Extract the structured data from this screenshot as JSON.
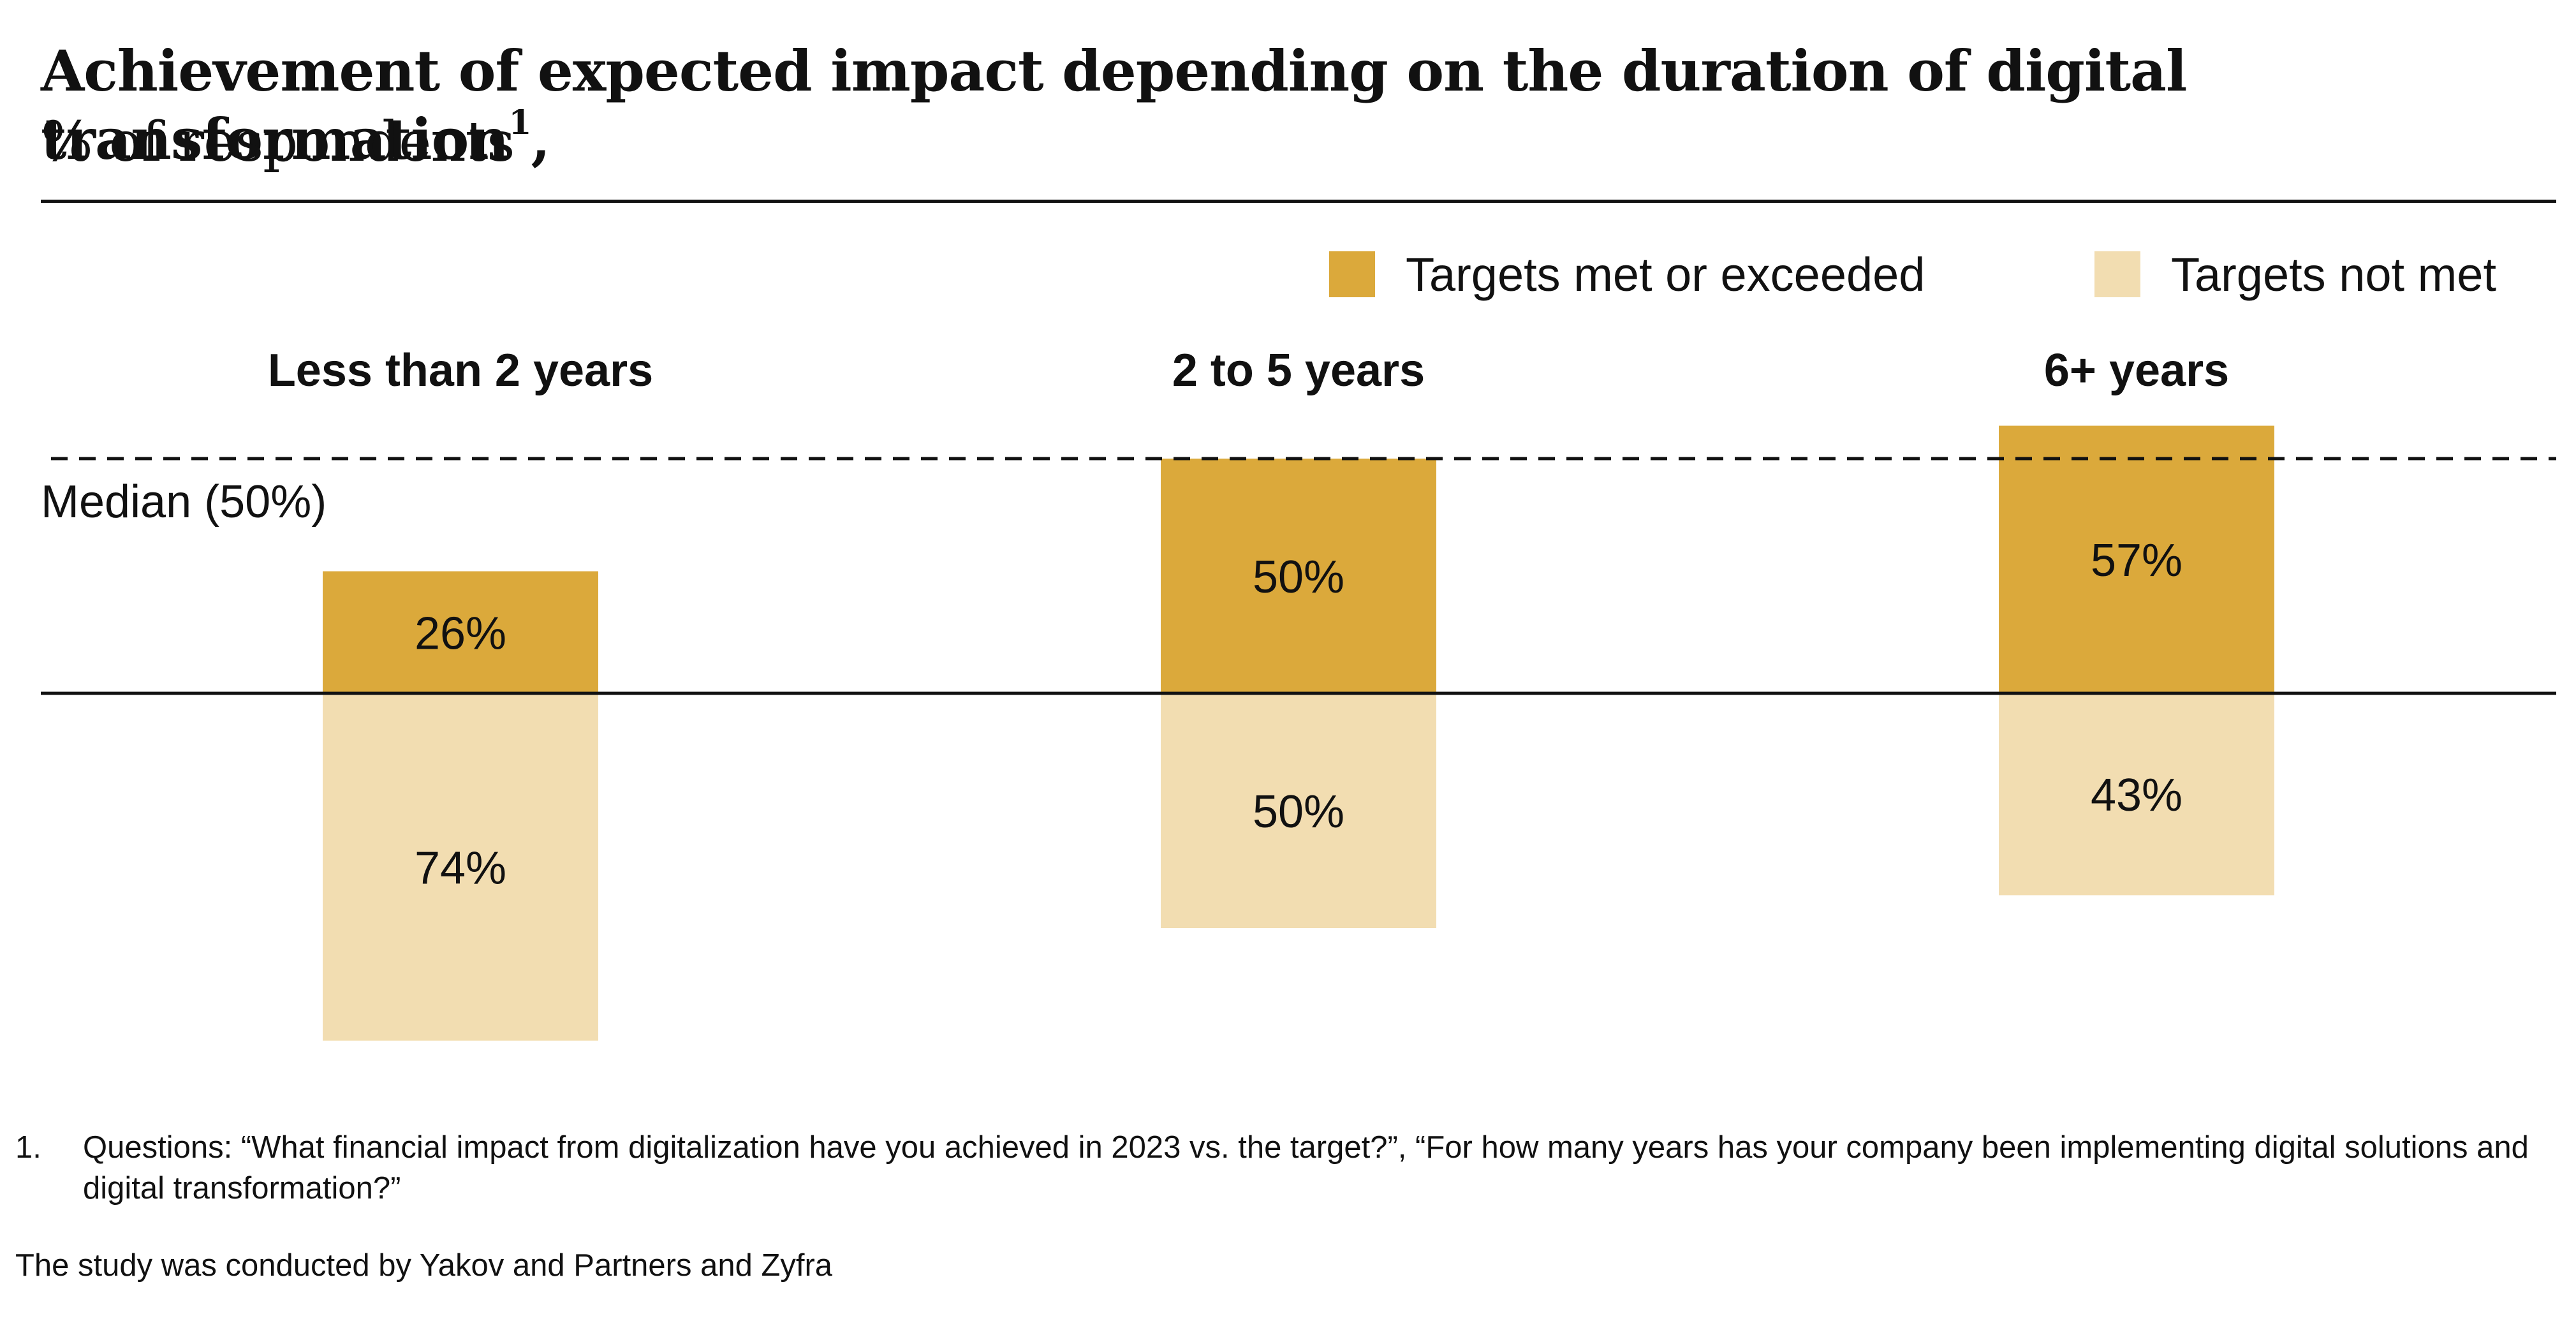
{
  "title": "Achievement of expected impact depending on the duration of digital transformation",
  "title_footnote_mark": "1",
  "title_tail": ",",
  "subtitle": "% of respondents",
  "legend": {
    "met": "Targets met or exceeded",
    "not_met": "Targets not met"
  },
  "median_label": "Median (50%)",
  "footnote": {
    "number": "1.",
    "text": "Questions: “What financial impact from digitalization have you achieved in 2023 vs. the target?”, “For how many years has your company been implementing digital solutions and digital transformation?”"
  },
  "source": "The study was conducted by Yakov and Partners and Zyfra",
  "colors": {
    "met": "#dba93b",
    "not_met": "#f2ddb1",
    "text": "#111111"
  },
  "chart_data": {
    "type": "bar",
    "categories": [
      "Less than 2 years",
      "2 to 5 years",
      "6+ years"
    ],
    "series": [
      {
        "name": "Targets met or exceeded",
        "values": [
          26,
          50,
          57
        ],
        "labels": [
          "26%",
          "50%",
          "57%"
        ]
      },
      {
        "name": "Targets not met",
        "values": [
          74,
          50,
          43
        ],
        "labels": [
          "74%",
          "50%",
          "43%"
        ]
      }
    ],
    "median": 50,
    "unit": "%"
  }
}
